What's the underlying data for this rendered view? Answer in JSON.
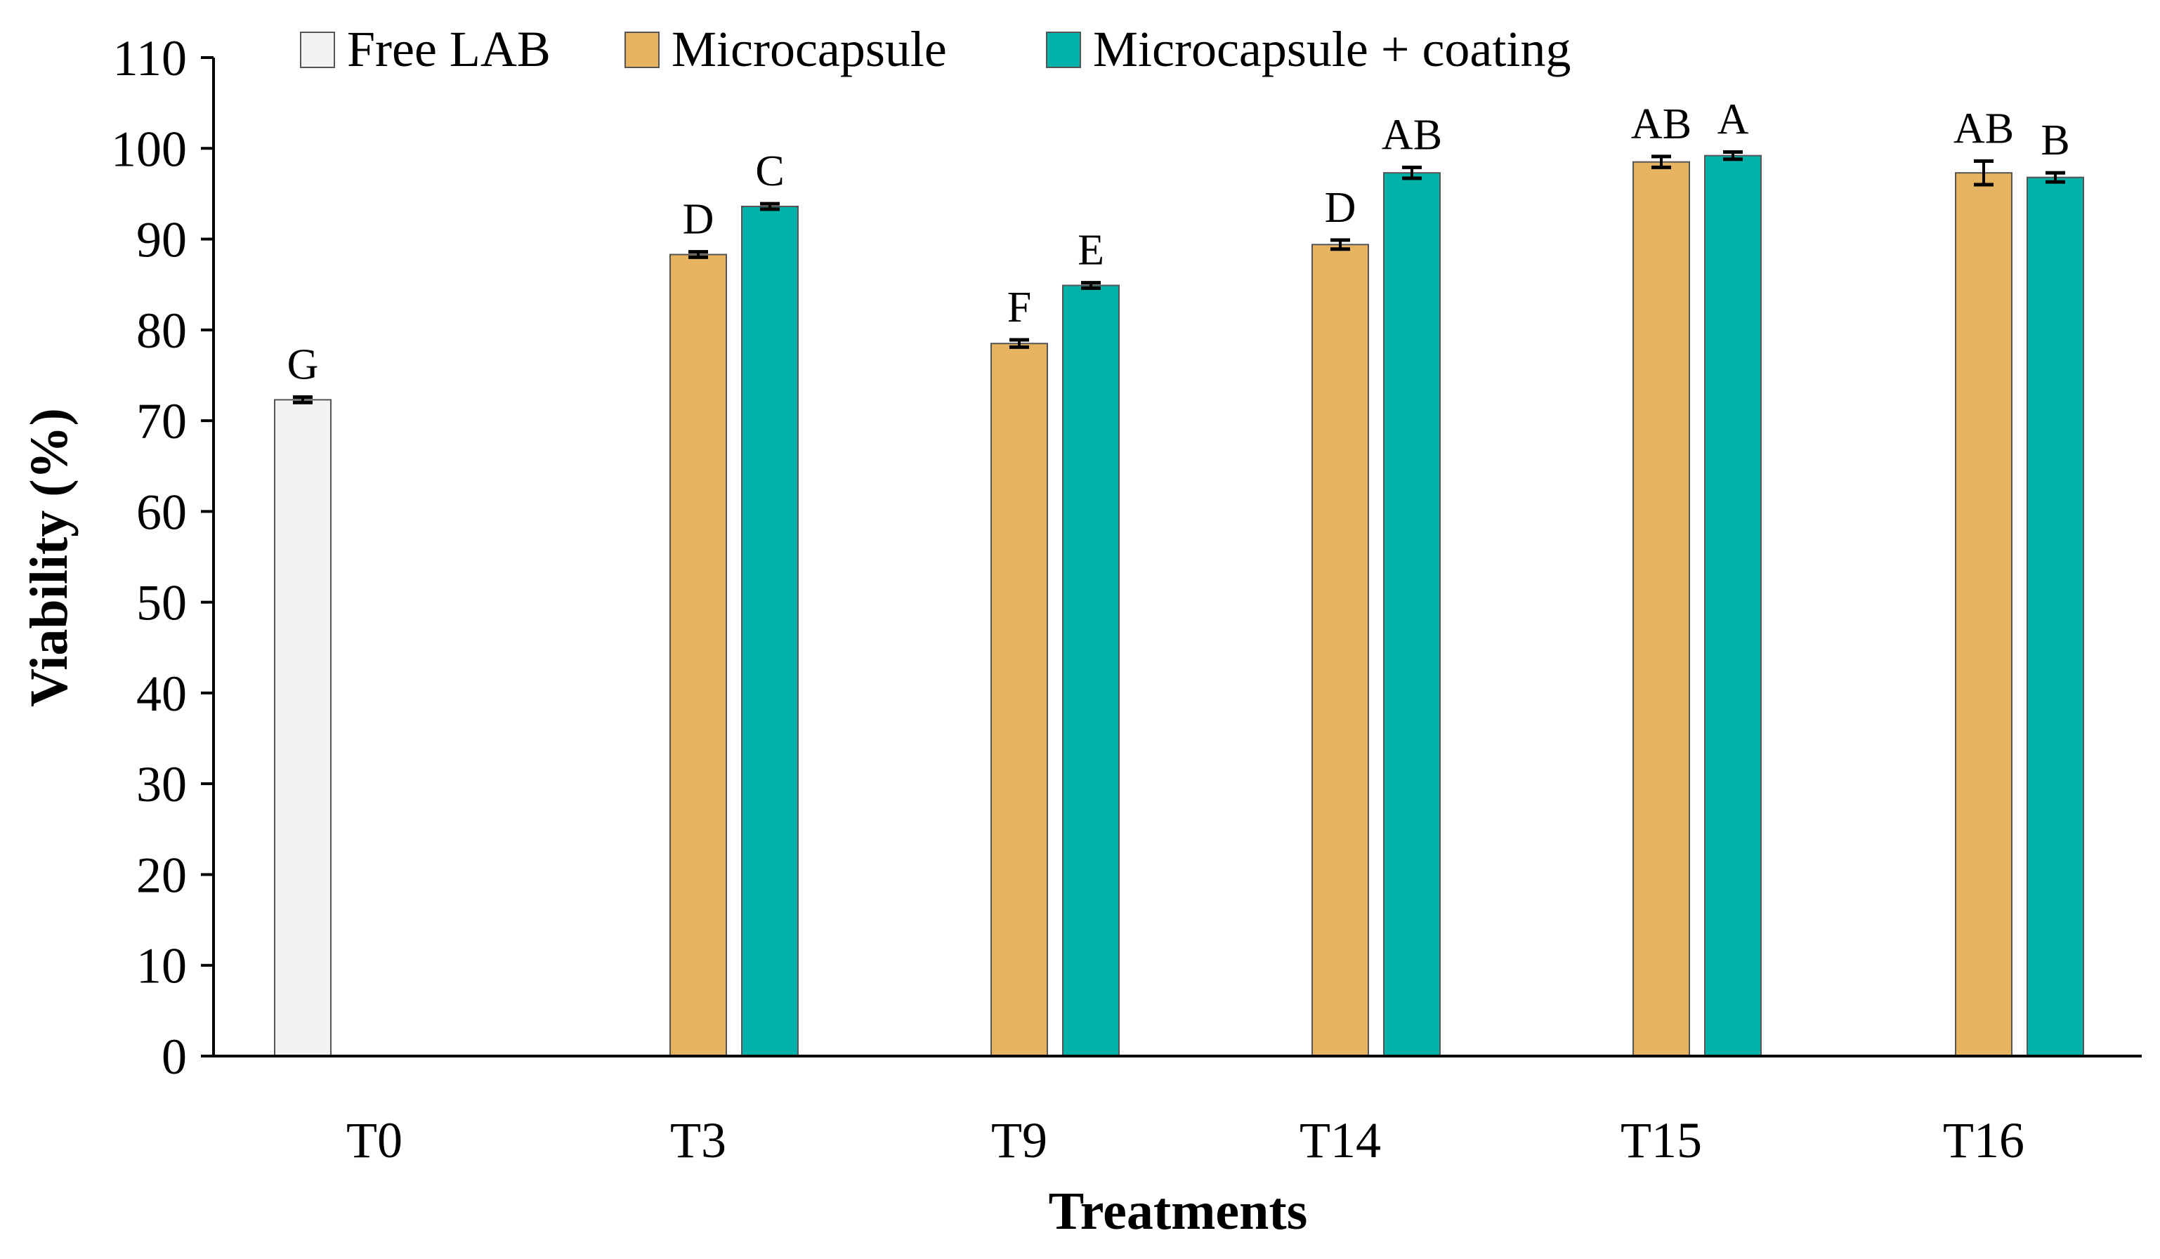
{
  "chart_data": {
    "type": "bar",
    "title": "",
    "xlabel": "Treatments",
    "ylabel": "Viability (%)",
    "ylim": [
      0,
      110
    ],
    "yticks": [
      0,
      10,
      20,
      30,
      40,
      50,
      60,
      70,
      80,
      90,
      100,
      110
    ],
    "categories": [
      "T0",
      "T3",
      "T9",
      "T14",
      "T15",
      "T16"
    ],
    "legend_position": "top",
    "grid": false,
    "series": [
      {
        "name": "Free LAB",
        "color": "#f2f2f2",
        "values": [
          72.3,
          null,
          null,
          null,
          null,
          null
        ],
        "errors": [
          0.3,
          null,
          null,
          null,
          null,
          null
        ],
        "letters": [
          "G",
          null,
          null,
          null,
          null,
          null
        ]
      },
      {
        "name": "Microcapsule",
        "color": "#e6b460",
        "values": [
          null,
          88.3,
          78.5,
          89.4,
          98.5,
          97.3
        ],
        "errors": [
          null,
          0.3,
          0.4,
          0.5,
          0.6,
          1.3
        ],
        "letters": [
          null,
          "D",
          "F",
          "D",
          "AB",
          "AB"
        ]
      },
      {
        "name": "Microcapsule + coating",
        "color": "#00b2a9",
        "values": [
          null,
          93.6,
          84.9,
          97.3,
          99.2,
          96.8
        ],
        "errors": [
          null,
          0.3,
          0.3,
          0.6,
          0.4,
          0.5
        ],
        "letters": [
          null,
          "C",
          "E",
          "AB",
          "A",
          "B"
        ]
      }
    ]
  }
}
